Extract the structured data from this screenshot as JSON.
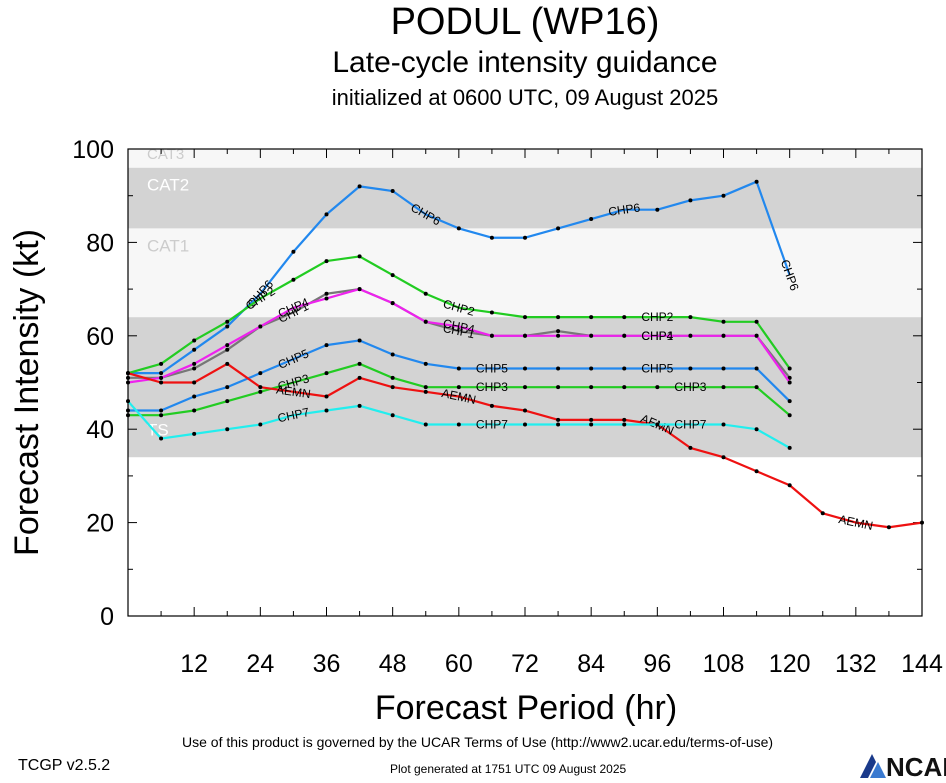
{
  "header": {
    "title": "PODUL (WP16)",
    "subtitle": "Late-cycle intensity guidance",
    "init": "initialized at 0600 UTC, 09 August 2025"
  },
  "footer": {
    "terms": "Use of this product is governed by the UCAR Terms of Use (http://www2.ucar.edu/terms-of-use)",
    "version": "TCGP v2.5.2",
    "generated": "Plot generated at 1751 UTC   09 August 2025",
    "logo": "NCAR"
  },
  "chart_data": {
    "type": "line",
    "xlabel": "Forecast Period (hr)",
    "ylabel": "Forecast Intensity (kt)",
    "xlim": [
      0,
      144
    ],
    "ylim": [
      0,
      100
    ],
    "xticks": [
      12,
      24,
      36,
      48,
      60,
      72,
      84,
      96,
      108,
      120,
      132,
      144
    ],
    "yticks": [
      0,
      20,
      40,
      60,
      80,
      100
    ],
    "grid": false,
    "bands": [
      {
        "label": "TS",
        "from": 34,
        "to": 64,
        "color": "#d3d3d3"
      },
      {
        "label": "CAT1",
        "from": 64,
        "to": 83,
        "color": "#f7f7f7"
      },
      {
        "label": "CAT2",
        "from": 83,
        "to": 96,
        "color": "#d3d3d3"
      },
      {
        "label": "CAT3",
        "from": 96,
        "to": 100,
        "color": "#f7f7f7"
      }
    ],
    "series": [
      {
        "name": "CHP6",
        "color": "#2288ee",
        "x": [
          0,
          6,
          12,
          18,
          24,
          30,
          36,
          42,
          48,
          54,
          60,
          66,
          72,
          78,
          84,
          90,
          96,
          102,
          108,
          114,
          120
        ],
        "y": [
          52,
          52,
          57,
          62,
          69,
          78,
          86,
          92,
          91,
          86,
          83,
          81,
          81,
          83,
          85,
          87,
          87,
          89,
          90,
          93,
          73
        ],
        "labels_at": [
          24,
          54,
          90,
          120
        ]
      },
      {
        "name": "CHP2",
        "color": "#22cc22",
        "x": [
          0,
          6,
          12,
          18,
          24,
          30,
          36,
          42,
          48,
          54,
          60,
          66,
          72,
          78,
          84,
          90,
          96,
          102,
          108,
          114,
          120
        ],
        "y": [
          52,
          54,
          59,
          63,
          68,
          72,
          76,
          77,
          73,
          69,
          66,
          65,
          64,
          64,
          64,
          64,
          64,
          64,
          63,
          63,
          53
        ],
        "labels_at": [
          24,
          60,
          96
        ]
      },
      {
        "name": "CHP1",
        "color": "#777777",
        "x": [
          0,
          6,
          12,
          18,
          24,
          30,
          36,
          42,
          48,
          54,
          60,
          66,
          72,
          78,
          84,
          90,
          96,
          102,
          108,
          114,
          120
        ],
        "y": [
          51,
          51,
          53,
          57,
          62,
          65,
          69,
          70,
          67,
          63,
          61,
          60,
          60,
          61,
          60,
          60,
          60,
          60,
          60,
          60,
          51
        ],
        "labels_at": [
          30,
          60,
          96
        ]
      },
      {
        "name": "CHP4",
        "color": "#ee22ee",
        "x": [
          0,
          6,
          12,
          18,
          24,
          30,
          36,
          42,
          48,
          54,
          60,
          66,
          72,
          78,
          84,
          90,
          96,
          102,
          108,
          114,
          120
        ],
        "y": [
          50,
          51,
          54,
          58,
          62,
          66,
          68,
          70,
          67,
          63,
          62,
          60,
          60,
          60,
          60,
          60,
          60,
          60,
          60,
          60,
          50
        ],
        "labels_at": [
          30,
          60,
          96
        ]
      },
      {
        "name": "CHP5",
        "color": "#2288ee",
        "x": [
          0,
          6,
          12,
          18,
          24,
          30,
          36,
          42,
          48,
          54,
          60,
          66,
          72,
          78,
          84,
          90,
          96,
          102,
          108,
          114,
          120
        ],
        "y": [
          44,
          44,
          47,
          49,
          52,
          55,
          58,
          59,
          56,
          54,
          53,
          53,
          53,
          53,
          53,
          53,
          53,
          53,
          53,
          53,
          46
        ],
        "labels_at": [
          30,
          66,
          96
        ]
      },
      {
        "name": "CHP3",
        "color": "#22cc22",
        "x": [
          0,
          6,
          12,
          18,
          24,
          30,
          36,
          42,
          48,
          54,
          60,
          66,
          72,
          78,
          84,
          90,
          96,
          102,
          108,
          114,
          120
        ],
        "y": [
          43,
          43,
          44,
          46,
          48,
          50,
          52,
          54,
          51,
          49,
          49,
          49,
          49,
          49,
          49,
          49,
          49,
          49,
          49,
          49,
          43
        ],
        "labels_at": [
          30,
          66,
          102
        ]
      },
      {
        "name": "AEMN",
        "color": "#ee1111",
        "x": [
          0,
          6,
          12,
          18,
          24,
          30,
          36,
          42,
          48,
          54,
          60,
          66,
          72,
          78,
          84,
          90,
          96,
          102,
          108,
          114,
          120,
          126,
          132,
          138,
          144
        ],
        "y": [
          52,
          50,
          50,
          54,
          49,
          48,
          47,
          51,
          49,
          48,
          47,
          45,
          44,
          42,
          42,
          42,
          41,
          36,
          34,
          31,
          28,
          22,
          20,
          19,
          20
        ],
        "labels_at": [
          30,
          60,
          96,
          132
        ]
      },
      {
        "name": "CHP7",
        "color": "#22eeee",
        "x": [
          0,
          6,
          12,
          18,
          24,
          30,
          36,
          42,
          48,
          54,
          60,
          66,
          72,
          78,
          84,
          90,
          96,
          102,
          108,
          114,
          120
        ],
        "y": [
          46,
          38,
          39,
          40,
          41,
          43,
          44,
          45,
          43,
          41,
          41,
          41,
          41,
          41,
          41,
          41,
          41,
          41,
          41,
          40,
          36
        ],
        "labels_at": [
          30,
          66,
          102
        ]
      }
    ]
  }
}
